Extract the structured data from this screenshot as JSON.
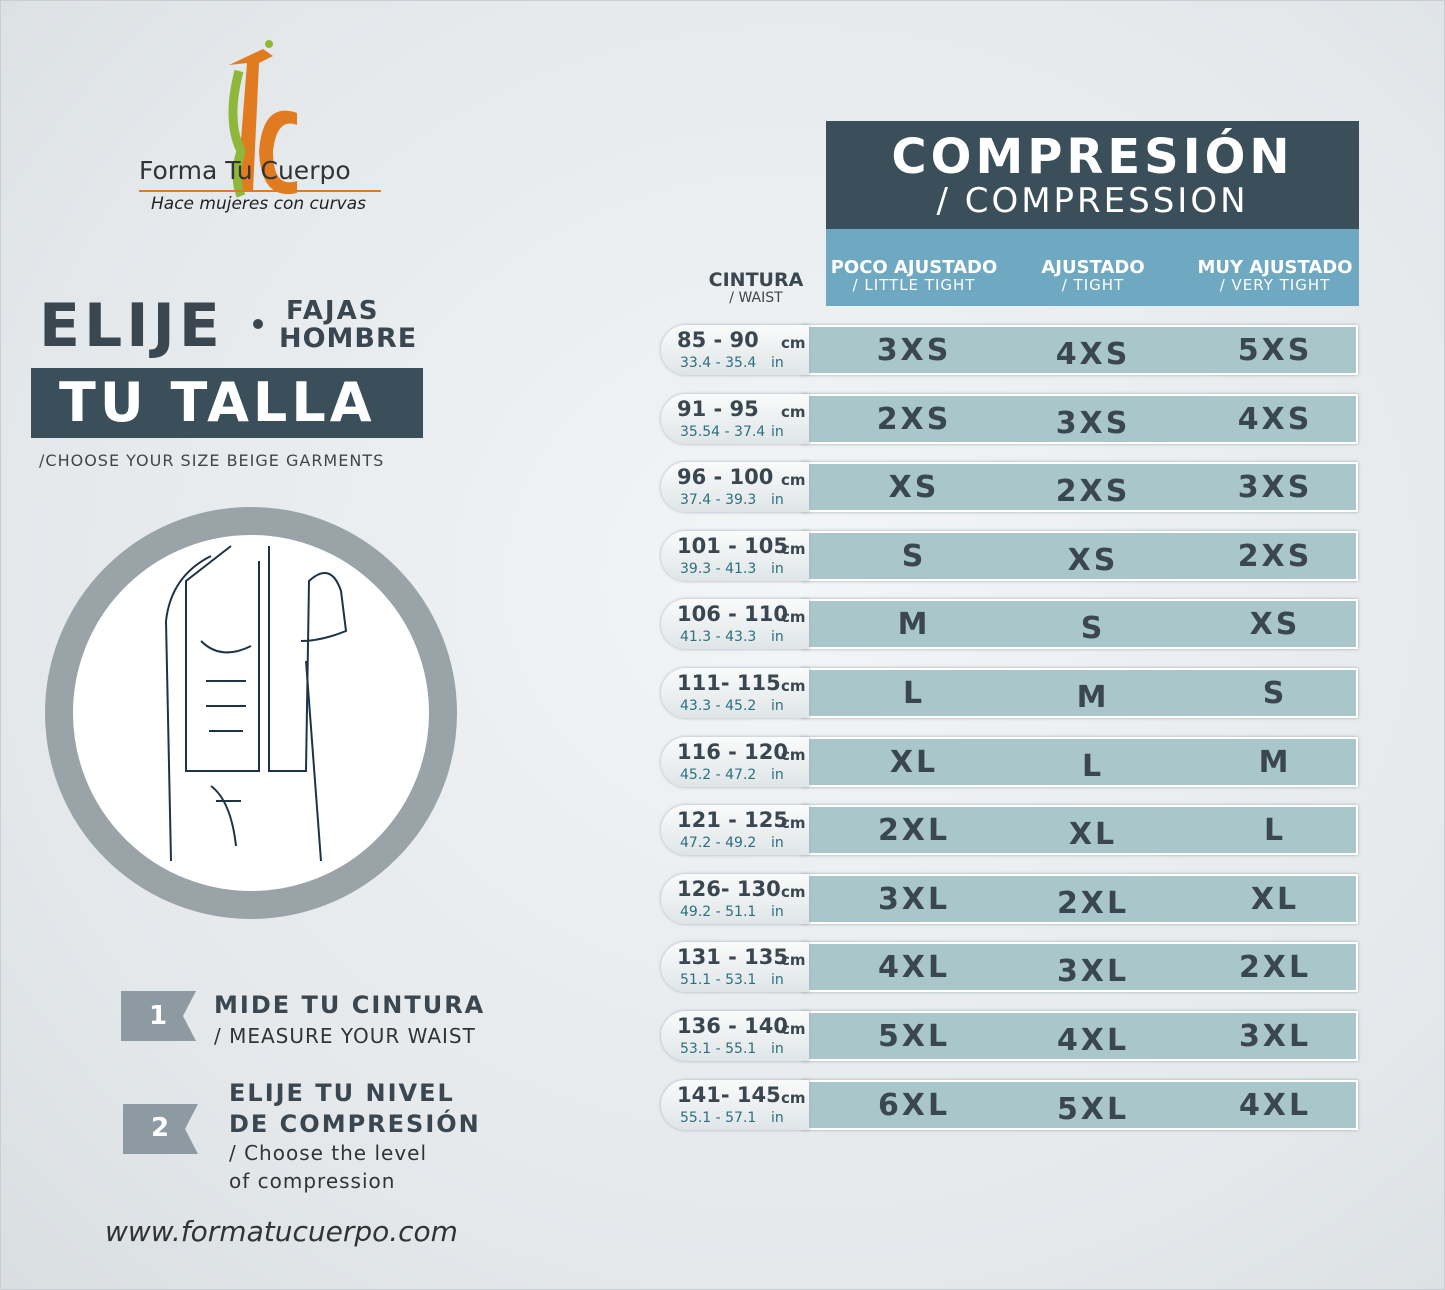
{
  "logo": {
    "mark": "FC",
    "name": "Forma Tu Cuerpo",
    "tagline": "Hace mujeres con curvas"
  },
  "heading": {
    "elije": "ELIJE",
    "fajas": "FAJAS",
    "hombre": "HOMBRE",
    "tu_talla": "TU TALLA",
    "subtitle": "/CHOOSE YOUR SIZE BEIGE GARMENTS"
  },
  "steps": [
    {
      "number": "1",
      "title": [
        "MIDE TU CINTURA"
      ],
      "subtitle": [
        "/ MEASURE YOUR WAIST"
      ]
    },
    {
      "number": "2",
      "title": [
        "ELIJE TU NIVEL",
        "DE COMPRESIÓN"
      ],
      "subtitle": [
        "/ Choose the level",
        "of compression"
      ]
    }
  ],
  "website": "www.formatucuerpo.com",
  "table": {
    "compression_title": "COMPRESIÓN",
    "compression_subtitle": "/ COMPRESSION",
    "waist_header": "CINTURA",
    "waist_subheader": "/ WAIST",
    "columns": [
      {
        "label": "POCO AJUSTADO",
        "sub": "/  LITTLE TIGHT"
      },
      {
        "label": "AJUSTADO",
        "sub": "/ TIGHT"
      },
      {
        "label": "MUY AJUSTADO",
        "sub": "/ VERY TIGHT"
      }
    ],
    "cm_unit": "cm",
    "in_unit": "in",
    "rows": [
      {
        "cm": "85 - 90",
        "inches": "33.4 - 35.4",
        "sizes": [
          "3XS",
          "4XS",
          "5XS"
        ]
      },
      {
        "cm": "91 - 95",
        "inches": "35.54 - 37.4",
        "sizes": [
          "2XS",
          "3XS",
          "4XS"
        ]
      },
      {
        "cm": "96 - 100",
        "inches": "37.4 - 39.3",
        "sizes": [
          "XS",
          "2XS",
          "3XS"
        ]
      },
      {
        "cm": "101 - 105",
        "inches": "39.3 - 41.3",
        "sizes": [
          "S",
          "XS",
          "2XS"
        ]
      },
      {
        "cm": "106 - 110",
        "inches": "41.3 - 43.3",
        "sizes": [
          "M",
          "S",
          "XS"
        ]
      },
      {
        "cm": "111- 115",
        "inches": "43.3 - 45.2",
        "sizes": [
          "L",
          "M",
          "S"
        ]
      },
      {
        "cm": "116 - 120",
        "inches": "45.2 - 47.2",
        "sizes": [
          "XL",
          "L",
          "M"
        ]
      },
      {
        "cm": "121 - 125",
        "inches": "47.2 - 49.2",
        "sizes": [
          "2XL",
          "XL",
          "L"
        ]
      },
      {
        "cm": "126- 130",
        "inches": "49.2 - 51.1",
        "sizes": [
          "3XL",
          "2XL",
          "XL"
        ]
      },
      {
        "cm": "131 - 135",
        "inches": "51.1 - 53.1",
        "sizes": [
          "4XL",
          "3XL",
          "2XL"
        ]
      },
      {
        "cm": "136 - 140",
        "inches": "53.1 - 55.1",
        "sizes": [
          "5XL",
          "4XL",
          "3XL"
        ]
      },
      {
        "cm": "141- 145",
        "inches": "55.1 - 57.1",
        "sizes": [
          "6XL",
          "5XL",
          "4XL"
        ]
      }
    ]
  }
}
